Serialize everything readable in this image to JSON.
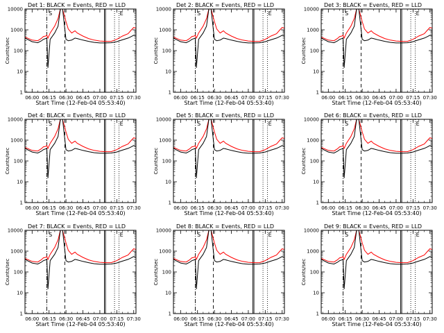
{
  "figure": {
    "x_axis_title": "Start Time (12-Feb-04 05:53:40)",
    "y_axis_title": "Counts/sec",
    "x_tick_labels": [
      "06:00",
      "06:15",
      "06:30",
      "06:45",
      "07:00",
      "07:15",
      "07:30"
    ],
    "y_tick_labels": [
      "1",
      "10",
      "100",
      "1000",
      "10000"
    ],
    "flag_labels": [
      "S",
      "E"
    ],
    "colors": {
      "events": "#000000",
      "lld": "#ff0000",
      "background": "#ffffff"
    }
  },
  "chart_data": [
    {
      "type": "line",
      "title": "Det 1: BLACK = Events, RED = LLD"
    },
    {
      "type": "line",
      "title": "Det 2: BLACK = Events, RED = LLD"
    },
    {
      "type": "line",
      "title": "Det 3: BLACK = Events, RED = LLD"
    },
    {
      "type": "line",
      "title": "Det 4: BLACK = Events, RED = LLD"
    },
    {
      "type": "line",
      "title": "Det 5: BLACK = Events, RED = LLD"
    },
    {
      "type": "line",
      "title": "Det 6: BLACK = Events, RED = LLD"
    },
    {
      "type": "line",
      "title": "Det 7: BLACK = Events, RED = LLD"
    },
    {
      "type": "line",
      "title": "Det 8: BLACK = Events, RED = LLD"
    },
    {
      "type": "line",
      "title": "Det 9: BLACK = Events, RED = LLD"
    }
  ],
  "shared_series": {
    "x": [
      "05:53:40",
      "06:00",
      "06:05",
      "06:08",
      "06:10",
      "06:12",
      "06:13",
      "06:14",
      "06:16",
      "06:20",
      "06:23",
      "06:25",
      "06:27",
      "06:30",
      "06:32",
      "06:35",
      "06:38",
      "06:40",
      "06:45",
      "06:50",
      "06:55",
      "07:00",
      "07:05",
      "07:10",
      "07:15",
      "07:20",
      "07:25",
      "07:28",
      "07:30",
      "07:32"
    ],
    "series": [
      {
        "name": "LLD",
        "values": [
          450,
          320,
          300,
          380,
          480,
          500,
          550,
          400,
          700,
          1500,
          3500,
          10000,
          10000,
          2500,
          1100,
          700,
          900,
          700,
          500,
          380,
          320,
          290,
          280,
          280,
          350,
          500,
          650,
          1000,
          1300,
          1200
        ]
      },
      {
        "name": "Events",
        "values": [
          400,
          270,
          240,
          290,
          350,
          380,
          400,
          15,
          350,
          700,
          1500,
          10000,
          10000,
          350,
          300,
          320,
          400,
          380,
          320,
          280,
          250,
          235,
          235,
          240,
          270,
          330,
          400,
          480,
          550,
          500
        ]
      }
    ],
    "markers": [
      {
        "time": "06:13",
        "style": "dash-dot"
      },
      {
        "time": "06:29",
        "style": "dashed"
      },
      {
        "time": "07:04",
        "style": "solid"
      },
      {
        "time": "07:05",
        "style": "solid"
      },
      {
        "time": "07:13",
        "style": "dotted"
      },
      {
        "time": "07:17",
        "style": "dotted"
      }
    ],
    "flags": [
      {
        "label": "S",
        "time": "06:14"
      },
      {
        "label": "E",
        "time": "07:17"
      }
    ],
    "ylim": [
      1,
      10000
    ],
    "y_scale": "log",
    "xlim": [
      "05:53:40",
      "07:32"
    ]
  }
}
